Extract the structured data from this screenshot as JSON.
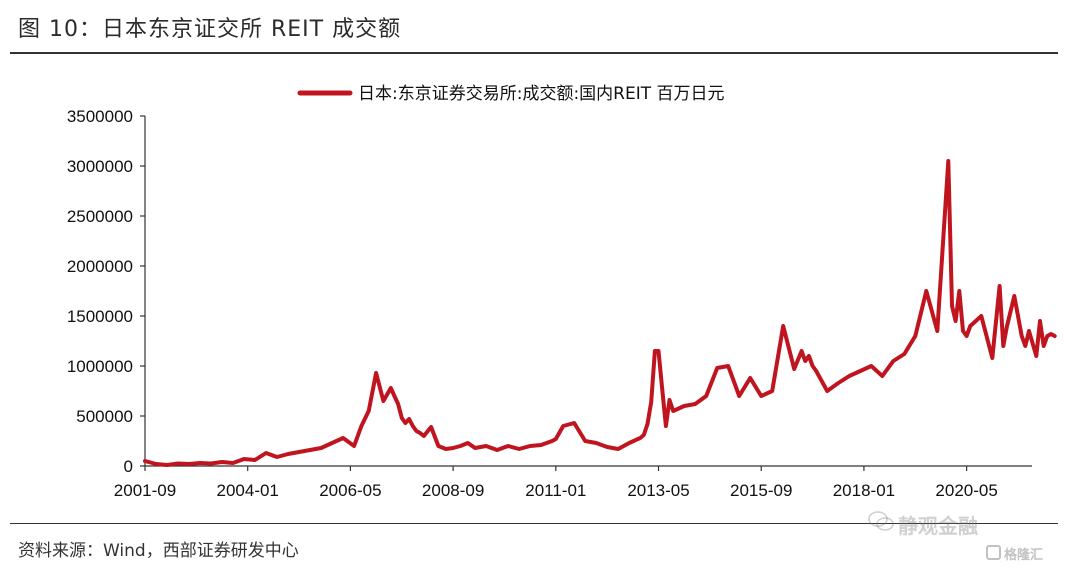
{
  "figure": {
    "title": "图 10：日本东京证交所 REIT 成交额",
    "source": "资料来源：Wind，西部证券研发中心",
    "watermark": "静观金融",
    "logo_text": "格隆汇"
  },
  "colors": {
    "series": "#c0141f",
    "axis": "#333333"
  },
  "chart_data": {
    "type": "line",
    "title": "",
    "xlabel": "",
    "ylabel": "",
    "ylim": [
      0,
      3500000
    ],
    "yticks": [
      0,
      500000,
      1000000,
      1500000,
      2000000,
      2500000,
      3000000,
      3500000
    ],
    "ytick_labels": [
      "0",
      "500000",
      "1000000",
      "1500000",
      "2000000",
      "2500000",
      "3000000",
      "3500000"
    ],
    "xticks": [
      "2001-09",
      "2004-01",
      "2006-05",
      "2008-09",
      "2011-01",
      "2013-05",
      "2015-09",
      "2018-01",
      "2020-05"
    ],
    "grid": false,
    "legend_position": "top-center",
    "series": [
      {
        "name": "日本:东京证券交易所:成交额:国内REIT 百万日元",
        "x": [
          "2001-09",
          "2001-12",
          "2002-03",
          "2002-06",
          "2002-09",
          "2002-12",
          "2003-03",
          "2003-06",
          "2003-09",
          "2003-12",
          "2004-03",
          "2004-06",
          "2004-09",
          "2004-12",
          "2005-03",
          "2005-06",
          "2005-09",
          "2005-12",
          "2006-03",
          "2006-06",
          "2006-08",
          "2006-10",
          "2006-12",
          "2007-02",
          "2007-04",
          "2007-05",
          "2007-06",
          "2007-07",
          "2007-08",
          "2007-09",
          "2007-10",
          "2007-11",
          "2007-12",
          "2008-01",
          "2008-03",
          "2008-05",
          "2008-07",
          "2008-09",
          "2008-11",
          "2009-01",
          "2009-03",
          "2009-06",
          "2009-09",
          "2009-12",
          "2010-03",
          "2010-06",
          "2010-09",
          "2010-12",
          "2011-01",
          "2011-03",
          "2011-06",
          "2011-09",
          "2011-12",
          "2012-03",
          "2012-06",
          "2012-09",
          "2012-12",
          "2013-01",
          "2013-02",
          "2013-03",
          "2013-04",
          "2013-05",
          "2013-06",
          "2013-07",
          "2013-08",
          "2013-09",
          "2013-12",
          "2014-03",
          "2014-06",
          "2014-09",
          "2014-12",
          "2015-03",
          "2015-06",
          "2015-09",
          "2015-12",
          "2016-03",
          "2016-06",
          "2016-08",
          "2016-09",
          "2016-10",
          "2016-11",
          "2016-12",
          "2017-03",
          "2017-06",
          "2017-09",
          "2017-12",
          "2018-03",
          "2018-06",
          "2018-09",
          "2018-12",
          "2019-03",
          "2019-06",
          "2019-09",
          "2019-12",
          "2020-01",
          "2020-02",
          "2020-03",
          "2020-04",
          "2020-05",
          "2020-06",
          "2020-09",
          "2020-12",
          "2021-02",
          "2021-03",
          "2021-04",
          "2021-06",
          "2021-08",
          "2021-09",
          "2021-10",
          "2021-12",
          "2022-01",
          "2022-02",
          "2022-03",
          "2022-04",
          "2022-05"
        ],
        "values": [
          50000,
          20000,
          10000,
          25000,
          20000,
          30000,
          25000,
          40000,
          30000,
          70000,
          60000,
          130000,
          90000,
          120000,
          140000,
          160000,
          180000,
          230000,
          280000,
          200000,
          400000,
          550000,
          930000,
          650000,
          780000,
          700000,
          620000,
          480000,
          430000,
          470000,
          400000,
          350000,
          330000,
          300000,
          390000,
          200000,
          170000,
          180000,
          200000,
          230000,
          180000,
          200000,
          160000,
          200000,
          170000,
          200000,
          210000,
          250000,
          270000,
          400000,
          430000,
          250000,
          230000,
          190000,
          170000,
          230000,
          280000,
          310000,
          420000,
          640000,
          1150000,
          1150000,
          770000,
          400000,
          660000,
          550000,
          600000,
          620000,
          700000,
          980000,
          1000000,
          700000,
          880000,
          700000,
          750000,
          1400000,
          970000,
          1150000,
          1050000,
          1100000,
          1000000,
          950000,
          750000,
          830000,
          900000,
          950000,
          1000000,
          900000,
          1050000,
          1120000,
          1300000,
          1750000,
          1350000,
          3050000,
          1600000,
          1450000,
          1750000,
          1350000,
          1300000,
          1400000,
          1500000,
          1080000,
          1800000,
          1200000,
          1400000,
          1700000,
          1300000,
          1200000,
          1350000,
          1100000,
          1450000,
          1200000,
          1300000,
          1320000,
          1300000
        ]
      }
    ]
  }
}
